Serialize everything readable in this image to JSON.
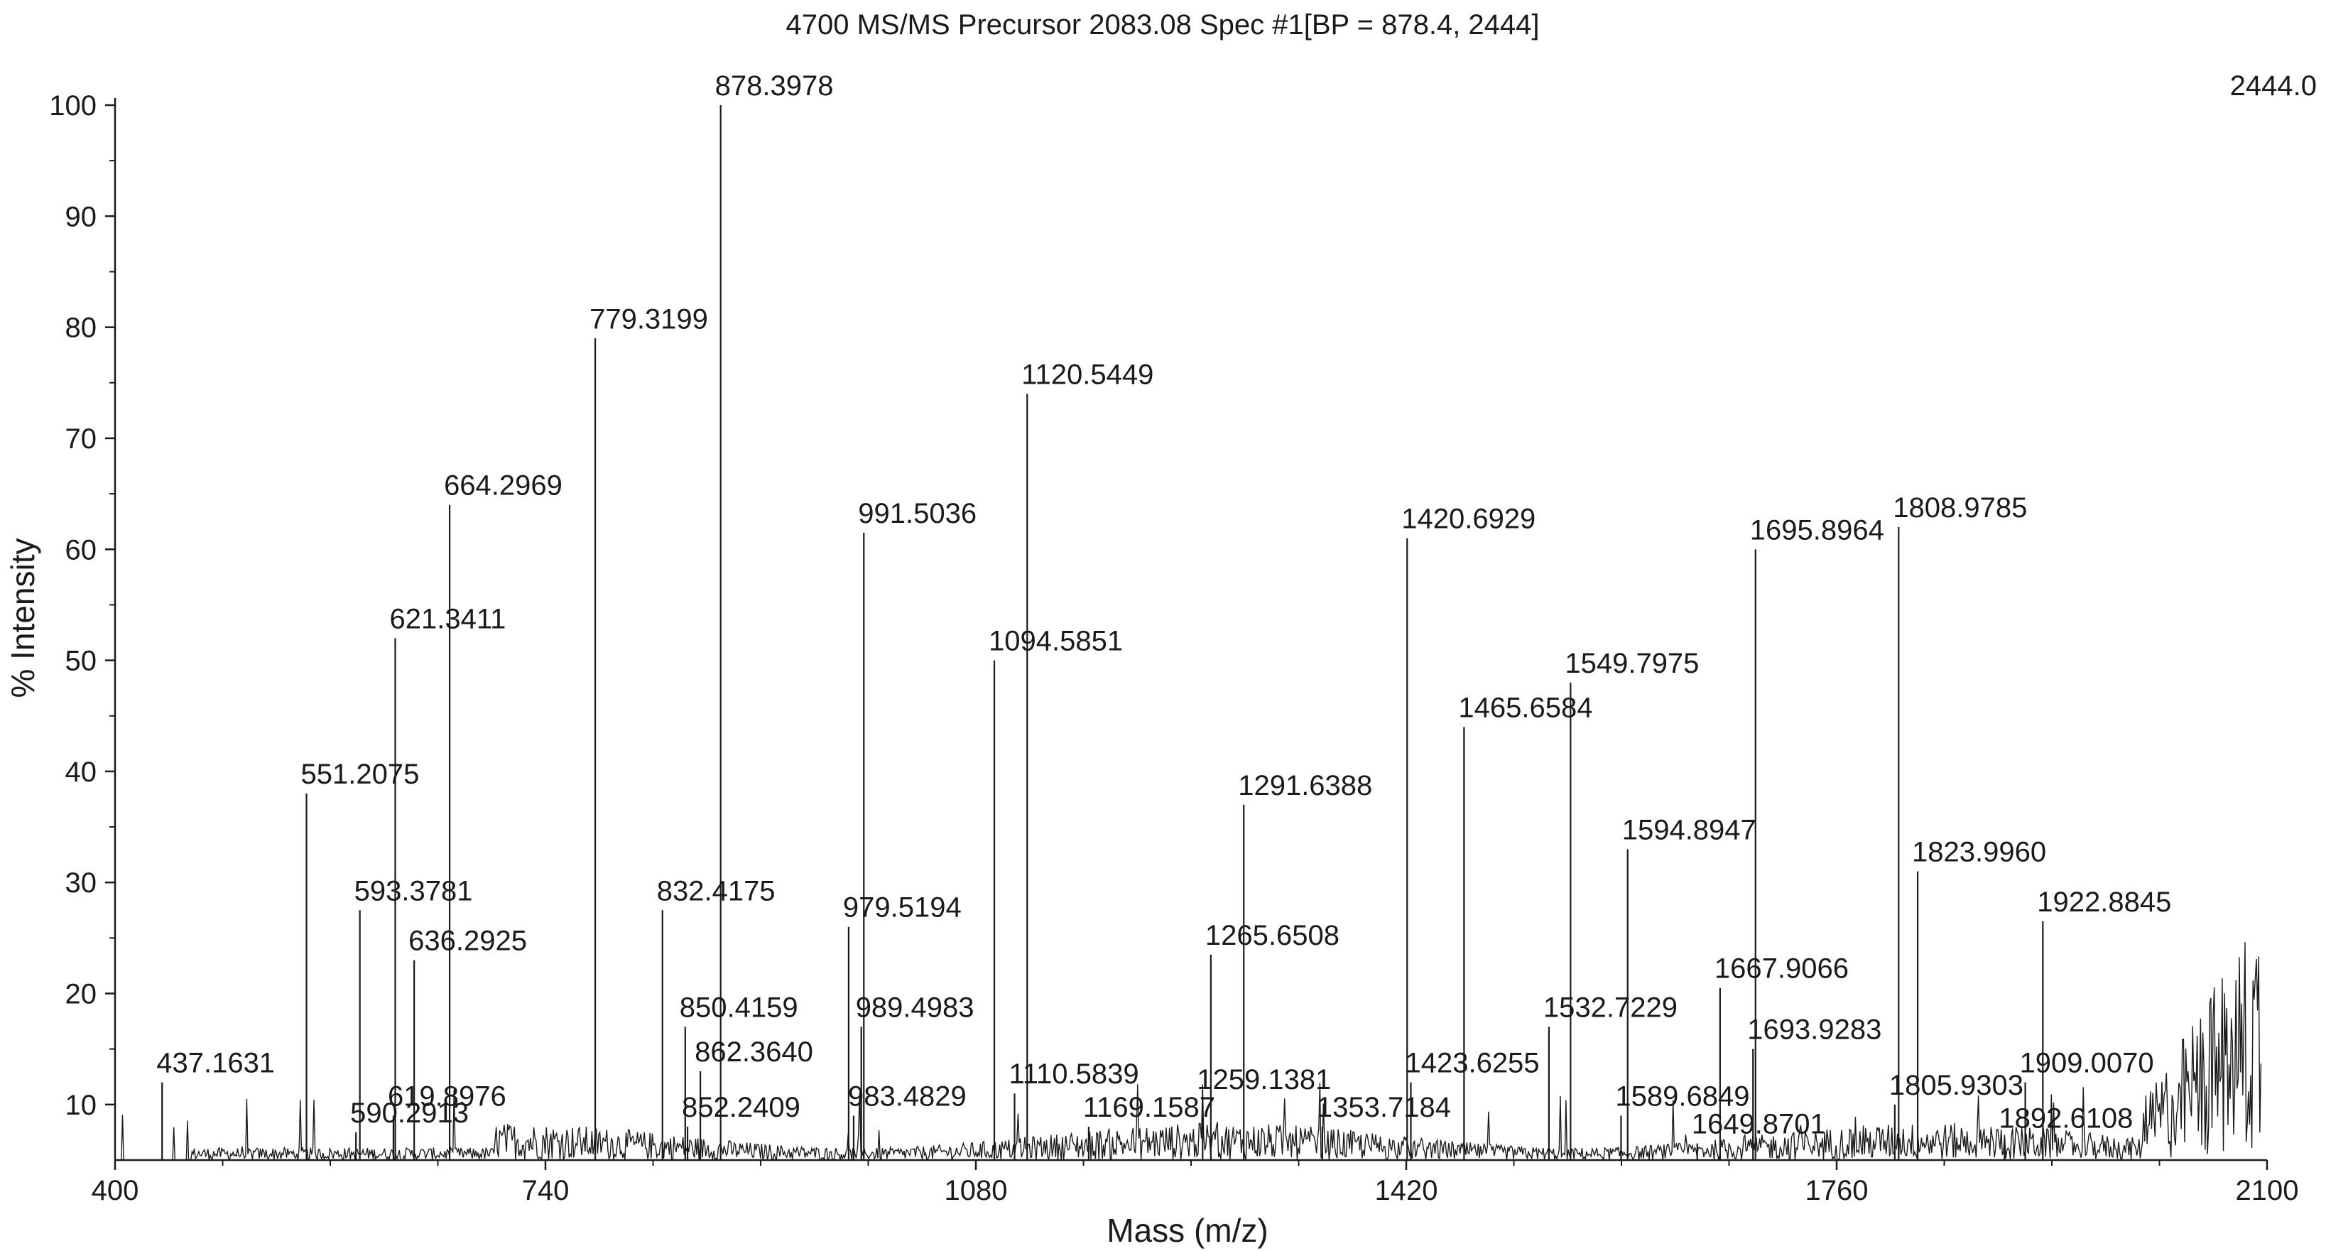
{
  "chart_data": {
    "type": "line",
    "title": "4700 MS/MS Precursor 2083.08  Spec #1[BP = 878.4, 2444]",
    "xlabel": "Mass (m/z)",
    "ylabel": "% Intensity",
    "xlim": [
      400,
      2100
    ],
    "ylim": [
      5,
      100
    ],
    "x_ticks": [
      400,
      740,
      1080,
      1420,
      1760,
      2100
    ],
    "y_ticks": [
      10,
      20,
      30,
      40,
      50,
      60,
      70,
      80,
      90,
      100
    ],
    "y_min_label": "5",
    "y_max_label": "2444.0",
    "grid": false,
    "peaks": [
      {
        "label": "437.1631",
        "mz": 437.16,
        "intensity": 12
      },
      {
        "label": "551.2075",
        "mz": 551.21,
        "intensity": 38
      },
      {
        "label": "593.3781",
        "mz": 593.38,
        "intensity": 27.5
      },
      {
        "label": "590.2913",
        "mz": 590.29,
        "intensity": 7.5
      },
      {
        "label": "621.3411",
        "mz": 621.34,
        "intensity": 52
      },
      {
        "label": "619.8976",
        "mz": 619.9,
        "intensity": 9
      },
      {
        "label": "636.2925",
        "mz": 636.29,
        "intensity": 23
      },
      {
        "label": "664.2969",
        "mz": 664.3,
        "intensity": 64
      },
      {
        "label": "779.3199",
        "mz": 779.32,
        "intensity": 79
      },
      {
        "label": "832.4175",
        "mz": 832.42,
        "intensity": 27.5
      },
      {
        "label": "850.4159",
        "mz": 850.42,
        "intensity": 17
      },
      {
        "label": "862.3640",
        "mz": 862.36,
        "intensity": 13
      },
      {
        "label": "852.2409",
        "mz": 852.24,
        "intensity": 8
      },
      {
        "label": "878.3978",
        "mz": 878.4,
        "intensity": 100
      },
      {
        "label": "979.5194",
        "mz": 979.52,
        "intensity": 26
      },
      {
        "label": "989.4983",
        "mz": 989.5,
        "intensity": 17
      },
      {
        "label": "983.4829",
        "mz": 983.48,
        "intensity": 9
      },
      {
        "label": "991.5036",
        "mz": 991.5,
        "intensity": 61.5
      },
      {
        "label": "1094.5851",
        "mz": 1094.59,
        "intensity": 50
      },
      {
        "label": "1120.5449",
        "mz": 1120.54,
        "intensity": 74
      },
      {
        "label": "1110.5839",
        "mz": 1110.58,
        "intensity": 11
      },
      {
        "label": "1169.1587",
        "mz": 1169.16,
        "intensity": 8
      },
      {
        "label": "1265.6508",
        "mz": 1265.65,
        "intensity": 23.5
      },
      {
        "label": "1259.1381",
        "mz": 1259.14,
        "intensity": 10.5
      },
      {
        "label": "1291.6388",
        "mz": 1291.64,
        "intensity": 37
      },
      {
        "label": "1353.7184",
        "mz": 1353.72,
        "intensity": 8
      },
      {
        "label": "1420.6929",
        "mz": 1420.69,
        "intensity": 61
      },
      {
        "label": "1423.6255",
        "mz": 1423.63,
        "intensity": 12
      },
      {
        "label": "1465.6584",
        "mz": 1465.66,
        "intensity": 44
      },
      {
        "label": "1532.7229",
        "mz": 1532.72,
        "intensity": 17
      },
      {
        "label": "1549.7975",
        "mz": 1549.8,
        "intensity": 48
      },
      {
        "label": "1589.6849",
        "mz": 1589.68,
        "intensity": 9
      },
      {
        "label": "1594.8947",
        "mz": 1594.89,
        "intensity": 33
      },
      {
        "label": "1649.8701",
        "mz": 1649.87,
        "intensity": 6.5
      },
      {
        "label": "1667.9066",
        "mz": 1667.91,
        "intensity": 20.5
      },
      {
        "label": "1693.9283",
        "mz": 1693.93,
        "intensity": 15
      },
      {
        "label": "1695.8964",
        "mz": 1695.9,
        "intensity": 60
      },
      {
        "label": "1805.9303",
        "mz": 1805.93,
        "intensity": 10
      },
      {
        "label": "1808.9785",
        "mz": 1808.98,
        "intensity": 62
      },
      {
        "label": "1823.9960",
        "mz": 1823.99,
        "intensity": 31
      },
      {
        "label": "1892.6108",
        "mz": 1892.61,
        "intensity": 7
      },
      {
        "label": "1909.0070",
        "mz": 1909.0,
        "intensity": 12
      },
      {
        "label": "1922.8845",
        "mz": 1922.88,
        "intensity": 26.5
      }
    ]
  }
}
